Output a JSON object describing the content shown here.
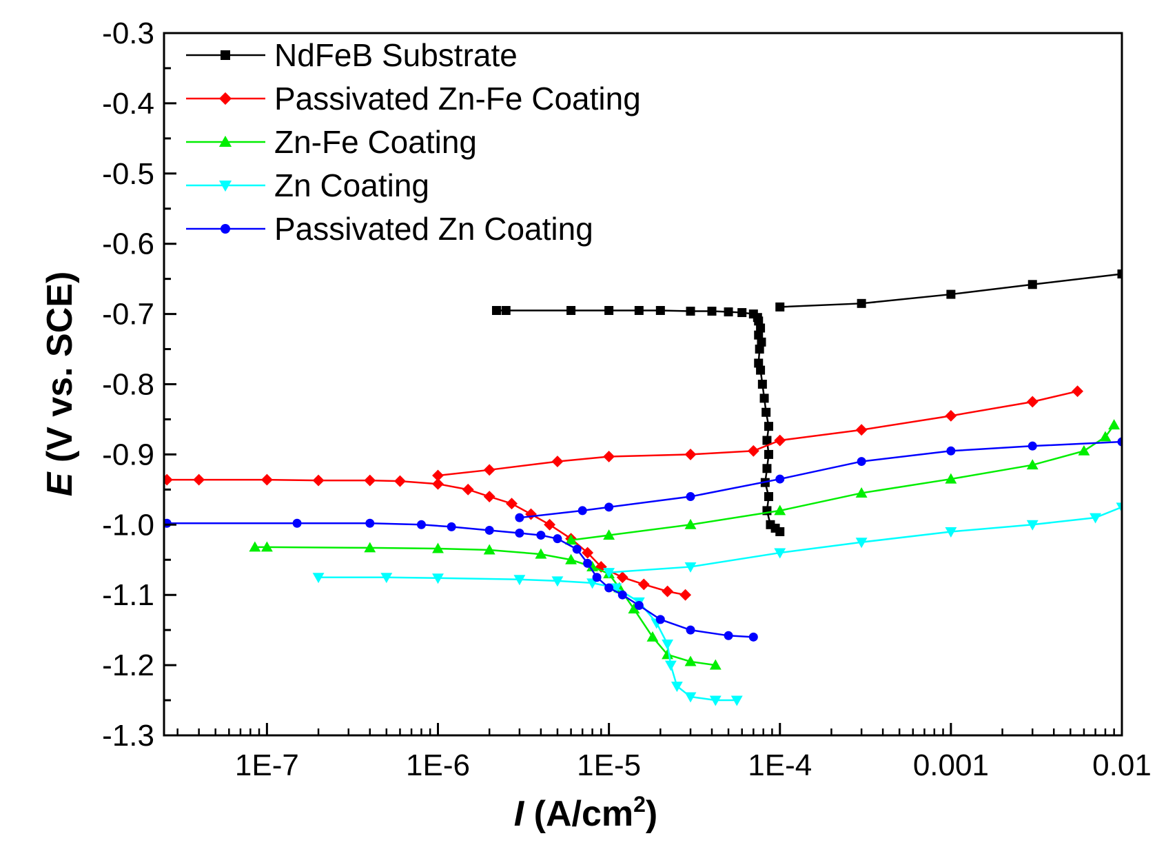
{
  "chart_data": {
    "type": "scatter",
    "x_scale": "log",
    "xlim": [
      2.5e-08,
      0.01
    ],
    "ylim": [
      -1.3,
      -0.3
    ],
    "y_ticks": [
      -0.3,
      -0.4,
      -0.5,
      -0.6,
      -0.7,
      -0.8,
      -0.9,
      -1.0,
      -1.1,
      -1.2,
      -1.3
    ],
    "y_tick_labels": [
      "-0.3",
      "-0.4",
      "-0.5",
      "-0.6",
      "-0.7",
      "-0.8",
      "-0.9",
      "-1.0",
      "-1.1",
      "-1.2",
      "-1.3"
    ],
    "x_ticks": [
      1e-07,
      1e-06,
      1e-05,
      0.0001,
      0.001,
      0.01
    ],
    "x_tick_labels": [
      "1E-7",
      "1E-6",
      "1E-5",
      "1E-4",
      "0.001",
      "0.01"
    ],
    "xlabel": {
      "symbol": "I",
      "unit_open": "(A/cm",
      "sup": "2",
      "unit_close": ")"
    },
    "ylabel": {
      "symbol": "E",
      "rest": "(V vs. SCE)"
    },
    "legend_position": "top-left",
    "series": [
      {
        "name": "NdFeB Substrate",
        "color": "#000000",
        "marker": "square",
        "points": [
          [
            0.0001,
            -1.01
          ],
          [
            9.4e-05,
            -1.005
          ],
          [
            8.8e-05,
            -1.0
          ],
          [
            8.4e-05,
            -0.98
          ],
          [
            8.6e-05,
            -0.96
          ],
          [
            8.2e-05,
            -0.94
          ],
          [
            8.4e-05,
            -0.92
          ],
          [
            8.6e-05,
            -0.9
          ],
          [
            8.4e-05,
            -0.88
          ],
          [
            8.6e-05,
            -0.86
          ],
          [
            8.3e-05,
            -0.84
          ],
          [
            8.1e-05,
            -0.82
          ],
          [
            7.9e-05,
            -0.8
          ],
          [
            7.7e-05,
            -0.78
          ],
          [
            7.5e-05,
            -0.77
          ],
          [
            7.6e-05,
            -0.75
          ],
          [
            7.8e-05,
            -0.74
          ],
          [
            7.5e-05,
            -0.73
          ],
          [
            7.7e-05,
            -0.72
          ],
          [
            7.5e-05,
            -0.71
          ],
          [
            7.4e-05,
            -0.705
          ],
          [
            7e-05,
            -0.7
          ],
          [
            6e-05,
            -0.698
          ],
          [
            5e-05,
            -0.697
          ],
          [
            4e-05,
            -0.696
          ],
          [
            3e-05,
            -0.696
          ],
          [
            2e-05,
            -0.695
          ],
          [
            1.5e-05,
            -0.695
          ],
          [
            1e-05,
            -0.695
          ],
          [
            6e-06,
            -0.695
          ],
          [
            2.5e-06,
            -0.695
          ],
          [
            2.2e-06,
            -0.695
          ],
          [
            0.0001,
            -0.69
          ],
          [
            0.0003,
            -0.685
          ],
          [
            0.001,
            -0.672
          ],
          [
            0.003,
            -0.658
          ],
          [
            0.01,
            -0.643
          ]
        ]
      },
      {
        "name": "Passivated Zn-Fe Coating",
        "color": "#ff0000",
        "marker": "diamond",
        "points": [
          [
            2.8e-05,
            -1.1
          ],
          [
            2.2e-05,
            -1.095
          ],
          [
            1.6e-05,
            -1.085
          ],
          [
            1.2e-05,
            -1.075
          ],
          [
            9e-06,
            -1.06
          ],
          [
            7.5e-06,
            -1.04
          ],
          [
            6e-06,
            -1.02
          ],
          [
            4.5e-06,
            -1.0
          ],
          [
            3.5e-06,
            -0.985
          ],
          [
            2.7e-06,
            -0.97
          ],
          [
            2e-06,
            -0.96
          ],
          [
            1.5e-06,
            -0.95
          ],
          [
            1e-06,
            -0.942
          ],
          [
            6e-07,
            -0.938
          ],
          [
            4e-07,
            -0.937
          ],
          [
            2e-07,
            -0.937
          ],
          [
            1e-07,
            -0.936
          ],
          [
            4e-08,
            -0.936
          ],
          [
            2.6e-08,
            -0.936
          ],
          [
            1e-06,
            -0.93
          ],
          [
            2e-06,
            -0.922
          ],
          [
            5e-06,
            -0.91
          ],
          [
            1e-05,
            -0.903
          ],
          [
            3e-05,
            -0.9
          ],
          [
            7e-05,
            -0.895
          ],
          [
            0.0001,
            -0.88
          ],
          [
            0.0003,
            -0.865
          ],
          [
            0.001,
            -0.845
          ],
          [
            0.003,
            -0.825
          ],
          [
            0.0055,
            -0.81
          ]
        ]
      },
      {
        "name": "Zn-Fe Coating",
        "color": "#00ee00",
        "marker": "triangle-up",
        "points": [
          [
            4.2e-05,
            -1.2
          ],
          [
            3e-05,
            -1.195
          ],
          [
            2.2e-05,
            -1.185
          ],
          [
            1.8e-05,
            -1.16
          ],
          [
            1.4e-05,
            -1.12
          ],
          [
            1.15e-05,
            -1.09
          ],
          [
            1e-05,
            -1.07
          ],
          [
            8e-06,
            -1.06
          ],
          [
            6e-06,
            -1.05
          ],
          [
            4e-06,
            -1.042
          ],
          [
            2e-06,
            -1.036
          ],
          [
            1e-06,
            -1.034
          ],
          [
            4e-07,
            -1.033
          ],
          [
            1e-07,
            -1.032
          ],
          [
            8.5e-08,
            -1.032
          ],
          [
            6e-06,
            -1.022
          ],
          [
            1e-05,
            -1.015
          ],
          [
            3e-05,
            -1.0
          ],
          [
            0.0001,
            -0.98
          ],
          [
            0.0003,
            -0.955
          ],
          [
            0.001,
            -0.935
          ],
          [
            0.003,
            -0.915
          ],
          [
            0.006,
            -0.895
          ],
          [
            0.008,
            -0.875
          ],
          [
            0.009,
            -0.858
          ]
        ]
      },
      {
        "name": "Zn Coating",
        "color": "#00ffff",
        "marker": "triangle-down",
        "points": [
          [
            5.6e-05,
            -1.25
          ],
          [
            4.2e-05,
            -1.25
          ],
          [
            3e-05,
            -1.245
          ],
          [
            2.5e-05,
            -1.23
          ],
          [
            2.3e-05,
            -1.2
          ],
          [
            2.2e-05,
            -1.17
          ],
          [
            1.9e-05,
            -1.14
          ],
          [
            1.5e-05,
            -1.11
          ],
          [
            1.1e-05,
            -1.09
          ],
          [
            8e-06,
            -1.083
          ],
          [
            5e-06,
            -1.08
          ],
          [
            3e-06,
            -1.078
          ],
          [
            1e-06,
            -1.076
          ],
          [
            5e-07,
            -1.075
          ],
          [
            2e-07,
            -1.075
          ],
          [
            1e-05,
            -1.068
          ],
          [
            3e-05,
            -1.06
          ],
          [
            0.0001,
            -1.04
          ],
          [
            0.0003,
            -1.025
          ],
          [
            0.001,
            -1.01
          ],
          [
            0.003,
            -1.0
          ],
          [
            0.007,
            -0.99
          ],
          [
            0.01,
            -0.975
          ]
        ]
      },
      {
        "name": "Passivated Zn Coating",
        "color": "#0000ff",
        "marker": "circle",
        "points": [
          [
            7e-05,
            -1.16
          ],
          [
            5e-05,
            -1.158
          ],
          [
            3e-05,
            -1.15
          ],
          [
            2e-05,
            -1.135
          ],
          [
            1.5e-05,
            -1.115
          ],
          [
            1.2e-05,
            -1.1
          ],
          [
            1e-05,
            -1.09
          ],
          [
            8.5e-06,
            -1.075
          ],
          [
            7.5e-06,
            -1.055
          ],
          [
            6.5e-06,
            -1.035
          ],
          [
            5e-06,
            -1.02
          ],
          [
            4e-06,
            -1.015
          ],
          [
            3e-06,
            -1.012
          ],
          [
            2e-06,
            -1.008
          ],
          [
            1.2e-06,
            -1.003
          ],
          [
            8e-07,
            -1.0
          ],
          [
            4e-07,
            -0.998
          ],
          [
            1.5e-07,
            -0.998
          ],
          [
            2.6e-08,
            -0.998
          ],
          [
            3e-06,
            -0.99
          ],
          [
            7e-06,
            -0.98
          ],
          [
            1e-05,
            -0.975
          ],
          [
            3e-05,
            -0.96
          ],
          [
            0.0001,
            -0.935
          ],
          [
            0.0003,
            -0.91
          ],
          [
            0.001,
            -0.895
          ],
          [
            0.003,
            -0.888
          ],
          [
            0.01,
            -0.882
          ]
        ]
      }
    ]
  }
}
